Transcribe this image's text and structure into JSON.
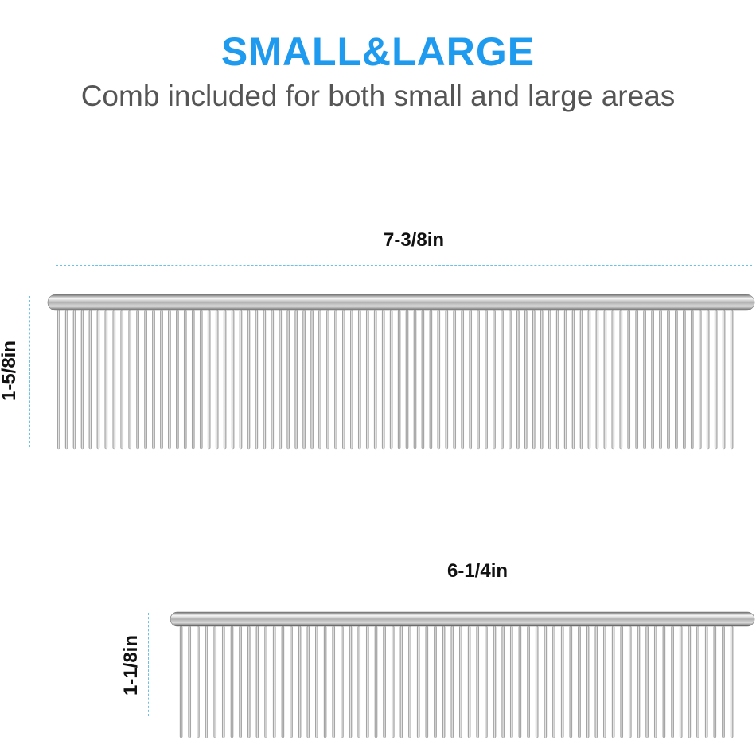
{
  "header": {
    "title": "SMALL&LARGE",
    "subtitle": "Comb included for both small and large areas"
  },
  "large_comb": {
    "width_label": "7-3/8in",
    "height_label": "1-5/8in",
    "teeth_count": 86
  },
  "small_comb": {
    "width_label": "6-1/4in",
    "height_label": "1-1/8in",
    "teeth_count": 66
  },
  "colors": {
    "title": "#1E9BEF",
    "dimension_line": "#6CC1E8",
    "steel_dark": "#7a7a7a",
    "steel_light": "#f4f4f4"
  }
}
